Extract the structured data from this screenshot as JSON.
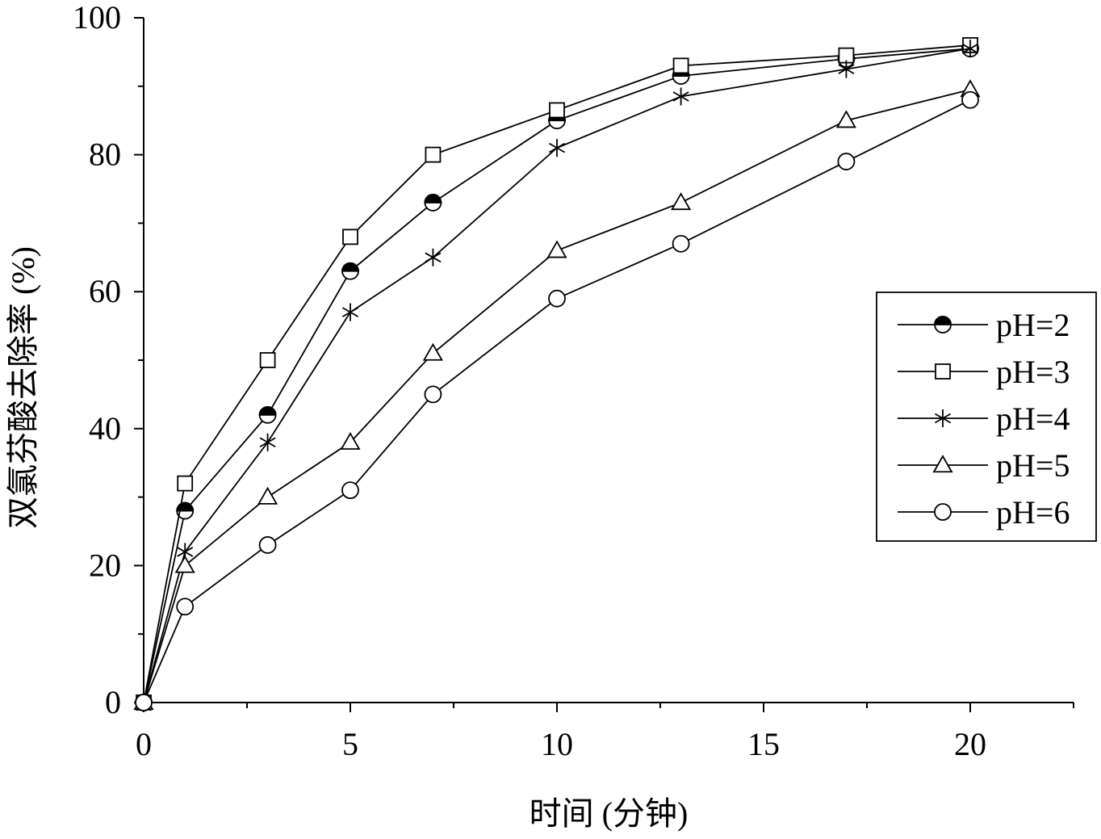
{
  "chart_data": {
    "type": "line",
    "title": "",
    "xlabel": "时间 (分钟)",
    "ylabel": "双氯芬酸去除率 (%)",
    "xlim": [
      0,
      22.5
    ],
    "ylim": [
      0,
      100
    ],
    "xticks": [
      0,
      5,
      10,
      15,
      20
    ],
    "yticks": [
      0,
      20,
      40,
      60,
      80,
      100
    ],
    "xtick_labels": [
      "0",
      "5",
      "10",
      "15",
      "20"
    ],
    "ytick_labels": [
      "0",
      "20",
      "40",
      "60",
      "80",
      "100"
    ],
    "grid": false,
    "legend_position": "right",
    "x": [
      0,
      1,
      3,
      5,
      7,
      10,
      13,
      17,
      20
    ],
    "series": [
      {
        "name": "pH=2",
        "marker": "half-filled-circle",
        "values": [
          0,
          28,
          42,
          63,
          73,
          85,
          91.5,
          94,
          95.5
        ]
      },
      {
        "name": "pH=3",
        "marker": "square",
        "values": [
          0,
          32,
          50,
          68,
          80,
          86.5,
          93,
          94.5,
          96
        ]
      },
      {
        "name": "pH=4",
        "marker": "asterisk",
        "values": [
          0,
          22,
          38,
          57,
          65,
          81,
          88.5,
          92.5,
          95.5
        ]
      },
      {
        "name": "pH=5",
        "marker": "triangle",
        "values": [
          0,
          20,
          30,
          38,
          51,
          66,
          73,
          85,
          89.5
        ]
      },
      {
        "name": "pH=6",
        "marker": "circle",
        "values": [
          0,
          14,
          23,
          31,
          45,
          59,
          67,
          79,
          88
        ]
      }
    ]
  }
}
